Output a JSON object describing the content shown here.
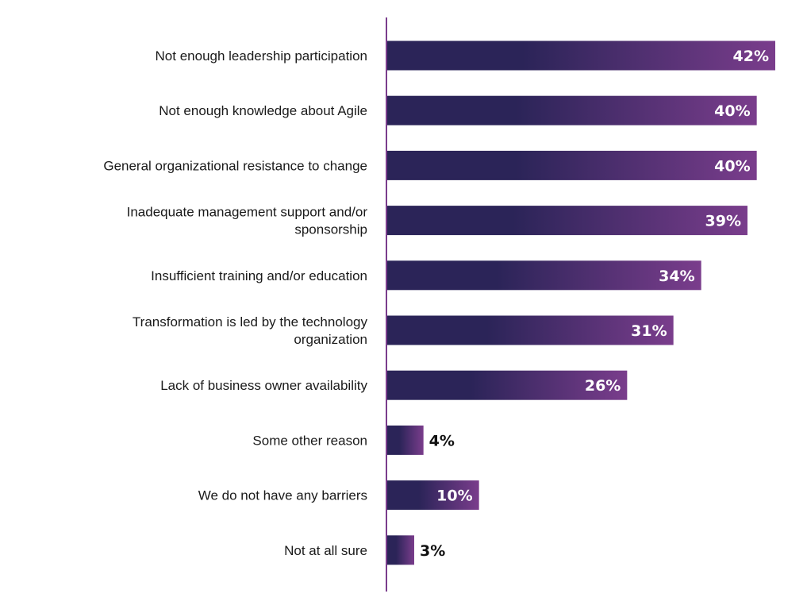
{
  "chart_data": {
    "type": "bar",
    "orientation": "horizontal",
    "title": "",
    "xlabel": "",
    "ylabel": "",
    "xlim": [
      0,
      42
    ],
    "grid": false,
    "categories": [
      [
        "Not enough leadership participation"
      ],
      [
        "Not enough knowledge about Agile"
      ],
      [
        "General organizational resistance to change"
      ],
      [
        "Inadequate management support and/or",
        "sponsorship"
      ],
      [
        "Insufficient training and/or education"
      ],
      [
        "Transformation is led by the technology",
        "organization"
      ],
      [
        "Lack of business owner availability"
      ],
      [
        "Some other reason"
      ],
      [
        "We do not have any barriers"
      ],
      [
        "Not at all sure"
      ]
    ],
    "values": [
      42,
      40,
      40,
      39,
      34,
      31,
      26,
      4,
      10,
      3
    ],
    "value_labels": [
      "42%",
      "40%",
      "40%",
      "39%",
      "34%",
      "31%",
      "26%",
      "4%",
      "10%",
      "3%"
    ]
  },
  "colors": {
    "bar_start": "#2b2458",
    "bar_end": "#7a3d8c",
    "axis": "#7a3d8c",
    "label_text": "#1a1a1a",
    "inside_value_text": "#ffffff",
    "outside_value_text": "#111111"
  }
}
